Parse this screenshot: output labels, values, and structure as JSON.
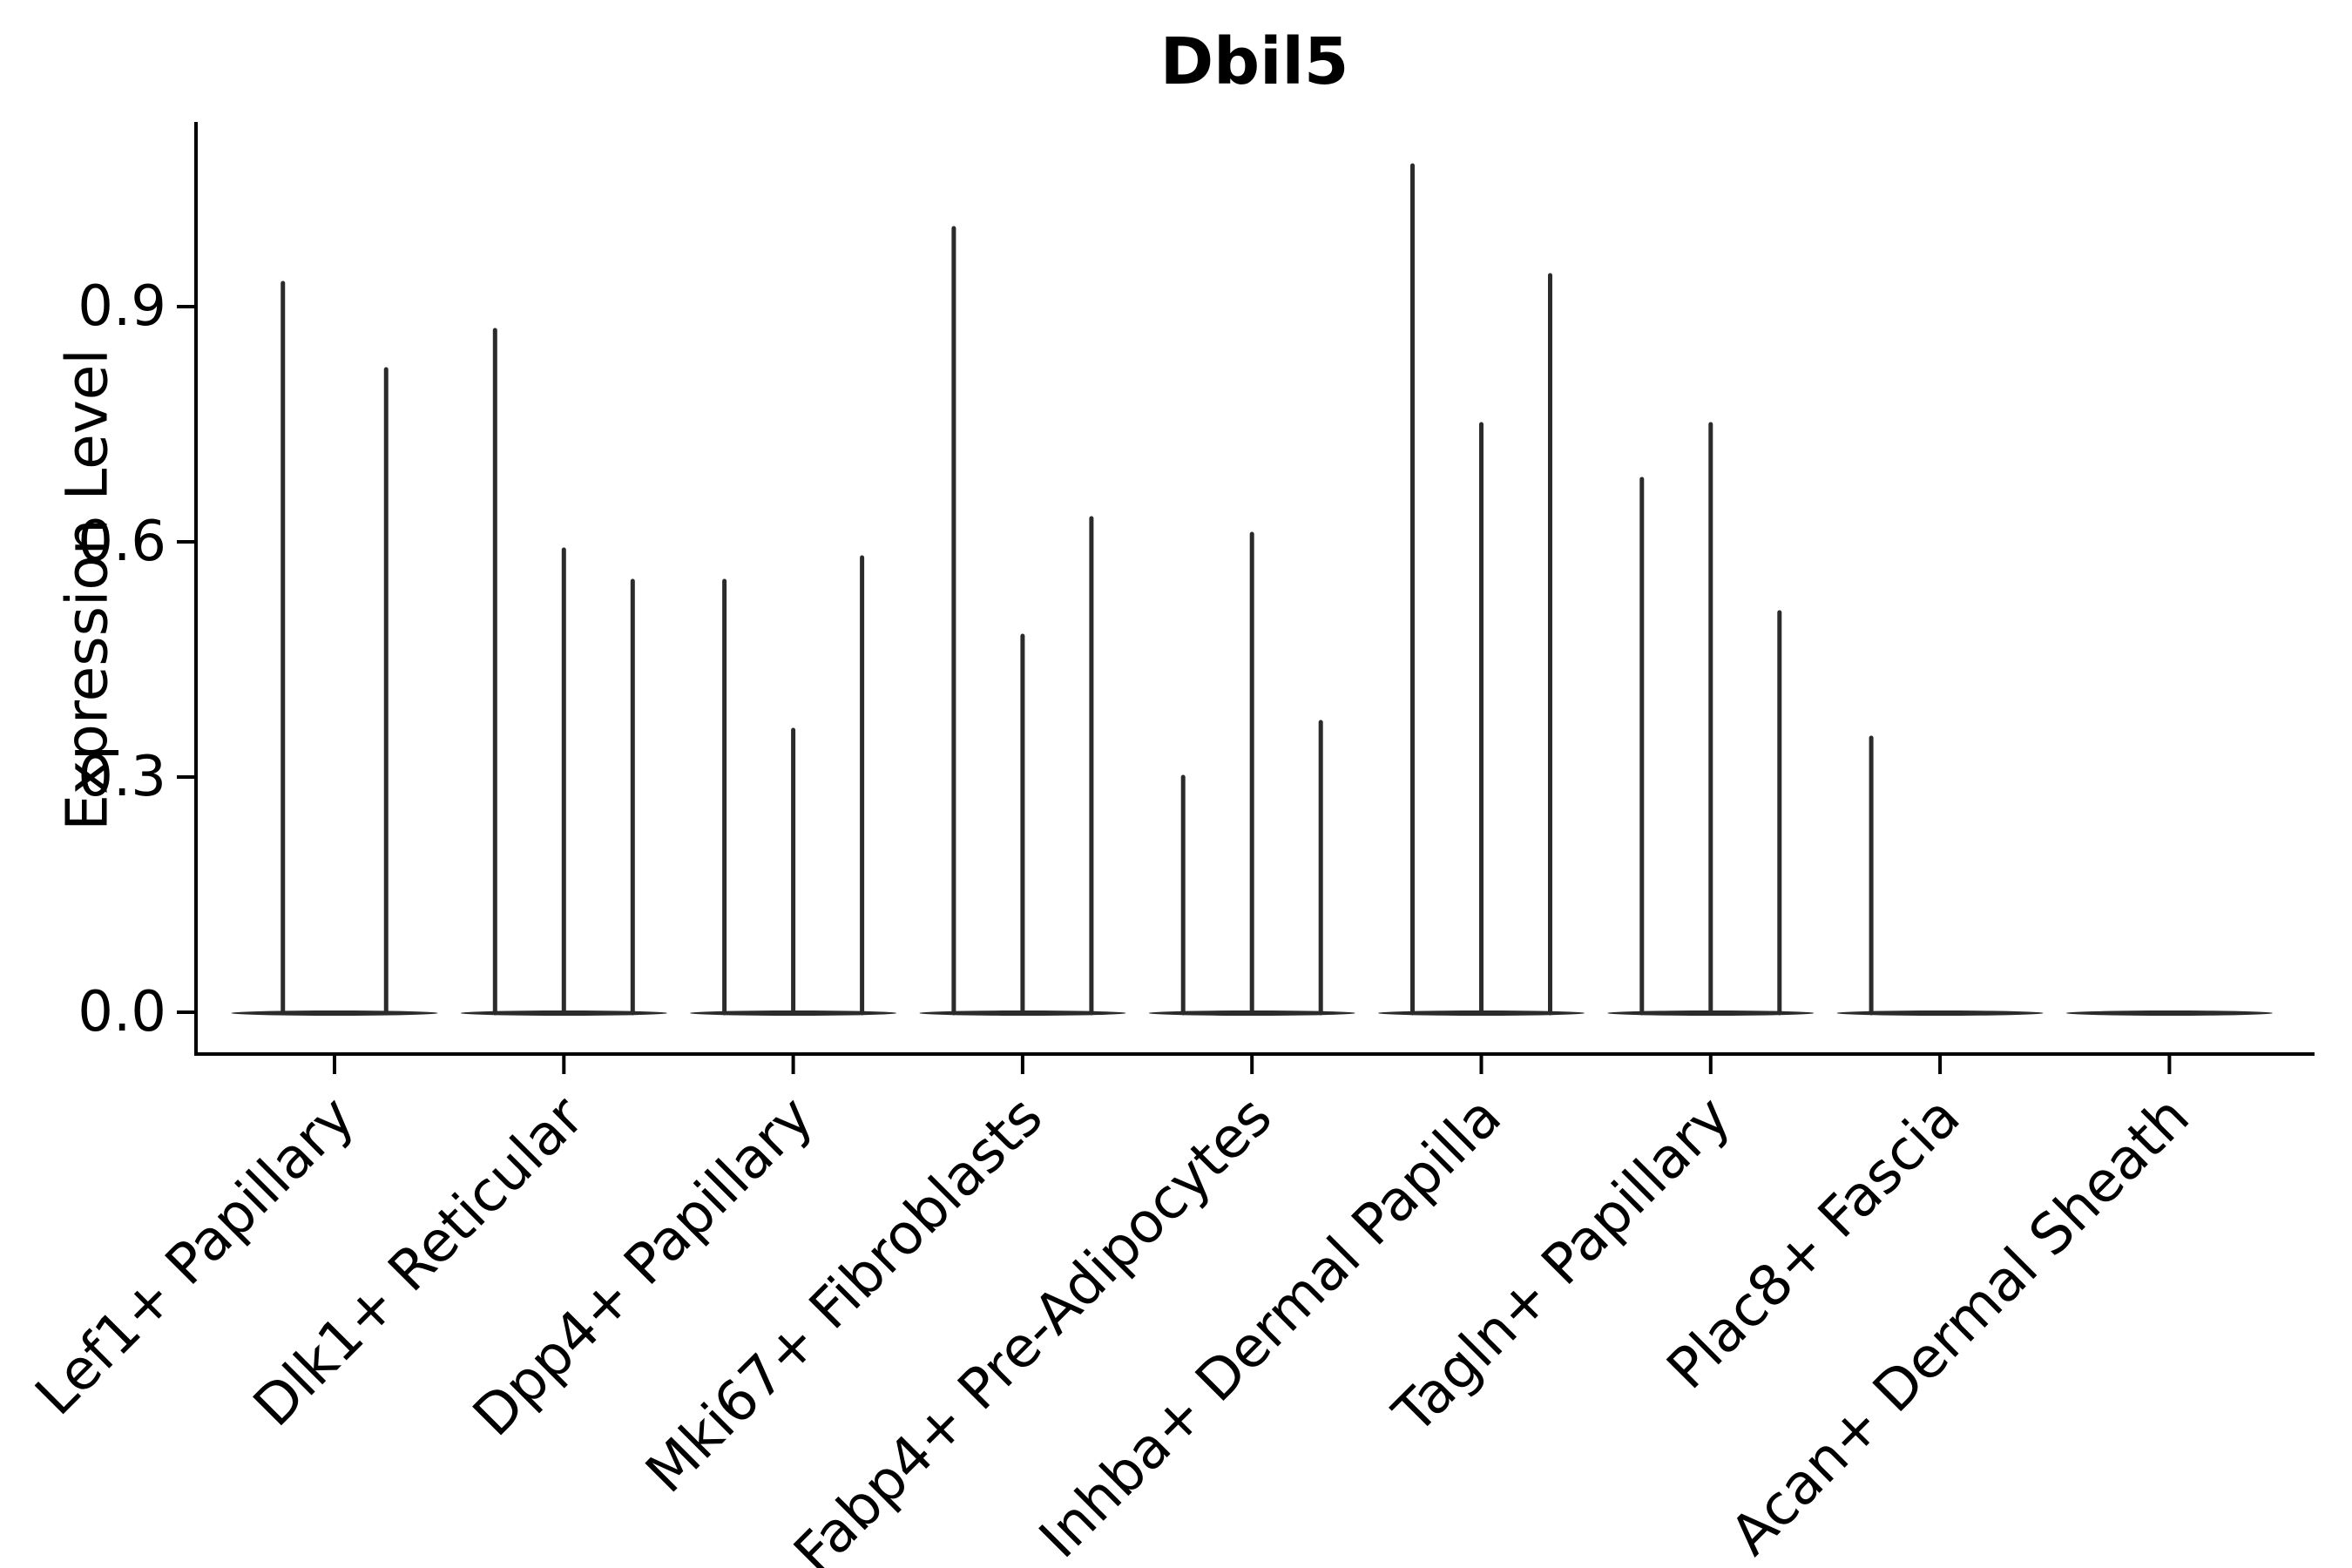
{
  "chart_data": {
    "type": "violin",
    "title": "Dbil5",
    "xlabel": "",
    "ylabel": "Expression Level",
    "ylim": [
      0,
      1.13
    ],
    "yticks": [
      0.0,
      0.3,
      0.6,
      0.9
    ],
    "ytick_labels": [
      "0.0",
      "0.3",
      "0.6",
      "0.9"
    ],
    "grid": false,
    "legend": null,
    "x_tick_rotation_deg": 45,
    "ink_color": "#2b2b2b",
    "axis_color": "#000000",
    "categories": [
      "Lef1+ Papillary",
      "Dlk1+ Reticular",
      "Dpp4+ Papillary",
      "Mki67+ Fibroblasts",
      "Fabp4+ Pre-Adipocytes",
      "Inhba+ Dermal Papilla",
      "Tagln+ Papillary",
      "Plac8+ Fascia",
      "Acan+ Dermal Sheath"
    ],
    "series_per_category": [
      {
        "category": "Lef1+ Papillary",
        "violin_peak_values": [
          0.93,
          0.82
        ]
      },
      {
        "category": "Dlk1+ Reticular",
        "violin_peak_values": [
          0.87,
          0.59,
          0.55
        ]
      },
      {
        "category": "Dpp4+ Papillary",
        "violin_peak_values": [
          0.55,
          0.36,
          0.58
        ]
      },
      {
        "category": "Mki67+ Fibroblasts",
        "violin_peak_values": [
          1.0,
          0.48,
          0.63
        ]
      },
      {
        "category": "Fabp4+ Pre-Adipocytes",
        "violin_peak_values": [
          0.3,
          0.61,
          0.37
        ]
      },
      {
        "category": "Inhba+ Dermal Papilla",
        "violin_peak_values": [
          1.08,
          0.75,
          0.94
        ]
      },
      {
        "category": "Tagln+ Papillary",
        "violin_peak_values": [
          0.68,
          0.75,
          0.51
        ]
      },
      {
        "category": "Plac8+ Fascia",
        "violin_peak_values": [
          0.35,
          0,
          0
        ]
      },
      {
        "category": "Acan+ Dermal Sheath",
        "violin_peak_values": [
          0,
          0,
          0
        ]
      }
    ]
  }
}
